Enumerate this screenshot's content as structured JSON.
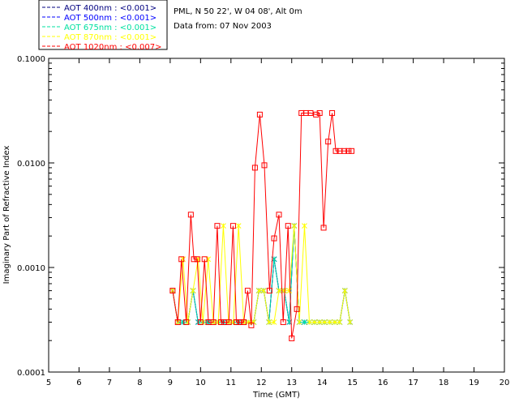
{
  "info": {
    "site": "PML, N 50 22', W 04 08', Alt 0m",
    "date": "Data from: 07 Nov 2003"
  },
  "chart_data": {
    "type": "line",
    "title": "",
    "xlabel": "Time (GMT)",
    "ylabel": "Imaginary Part of Refractive Index",
    "xlim": [
      5,
      20
    ],
    "ylim": [
      0.0001,
      0.1
    ],
    "yscale": "log",
    "x_ticks": [
      "5",
      "6",
      "7",
      "8",
      "9",
      "10",
      "11",
      "12",
      "13",
      "14",
      "15",
      "16",
      "17",
      "18",
      "19",
      "20"
    ],
    "y_ticks": [
      {
        "value": 0.0001,
        "label": "0.0001"
      },
      {
        "value": 0.001,
        "label": "0.0010"
      },
      {
        "value": 0.01,
        "label": "0.0100"
      },
      {
        "value": 0.1,
        "label": "0.1000"
      }
    ],
    "legend_position": "top-left (outside plot)",
    "series": [
      {
        "name": "AOT 400nm : <0.001>",
        "color": "#000080",
        "marker": "x",
        "x": [
          9.08,
          9.25,
          9.42,
          9.58,
          9.75,
          9.92,
          10.08,
          10.25,
          10.42,
          10.58,
          10.75,
          10.92,
          11.08,
          11.25,
          11.42,
          11.58,
          11.75,
          11.92,
          12.08,
          12.25,
          12.42,
          12.58,
          12.75,
          12.92,
          13.08,
          13.25,
          13.42,
          13.58,
          13.75,
          13.92,
          14.08,
          14.25,
          14.42,
          14.58,
          14.75,
          14.92
        ],
        "y": [
          0.0006,
          0.0003,
          0.0003,
          0.0003,
          0.0006,
          0.0003,
          0.0003,
          0.0003,
          0.0003,
          0.0003,
          0.0003,
          0.0003,
          0.0003,
          0.0003,
          0.0003,
          0.0003,
          0.0003,
          0.0006,
          0.0006,
          0.0003,
          0.0012,
          0.0006,
          0.0006,
          0.0003,
          0.0025,
          0.0003,
          0.0003,
          0.0003,
          0.0003,
          0.0003,
          0.0003,
          0.0003,
          0.0003,
          0.0003,
          0.0006,
          0.0003
        ]
      },
      {
        "name": "AOT 500nm : <0.001>",
        "color": "#0000ff",
        "marker": "x",
        "x": [
          9.08,
          9.25,
          9.42,
          9.58,
          9.75,
          9.92,
          10.08,
          10.25,
          10.42,
          10.58,
          10.75,
          10.92,
          11.08,
          11.25,
          11.42,
          11.58,
          11.75,
          11.92,
          12.08,
          12.25,
          12.42,
          12.58,
          12.75,
          12.92,
          13.08,
          13.25,
          13.42,
          13.58,
          13.75,
          13.92,
          14.08,
          14.25,
          14.42,
          14.58,
          14.75,
          14.92
        ],
        "y": [
          0.0006,
          0.0003,
          0.0003,
          0.0003,
          0.0006,
          0.0003,
          0.0003,
          0.0003,
          0.0003,
          0.0003,
          0.0003,
          0.0003,
          0.0003,
          0.0003,
          0.0003,
          0.0003,
          0.0003,
          0.0006,
          0.0006,
          0.0003,
          0.0012,
          0.0006,
          0.0006,
          0.0003,
          0.0025,
          0.0003,
          0.0003,
          0.0003,
          0.0003,
          0.0003,
          0.0003,
          0.0003,
          0.0003,
          0.0003,
          0.0006,
          0.0003
        ]
      },
      {
        "name": "AOT 675nm : <0.001>",
        "color": "#00e0a0",
        "marker": "x",
        "x": [
          9.08,
          9.25,
          9.42,
          9.58,
          9.75,
          9.92,
          10.08,
          10.25,
          10.42,
          10.58,
          10.75,
          10.92,
          11.08,
          11.25,
          11.42,
          11.58,
          11.75,
          11.92,
          12.08,
          12.25,
          12.42,
          12.58,
          12.75,
          12.92,
          13.08,
          13.25,
          13.42,
          13.58,
          13.75,
          13.92,
          14.08,
          14.25,
          14.42,
          14.58,
          14.75,
          14.92
        ],
        "y": [
          0.0006,
          0.0003,
          0.0003,
          0.0003,
          0.0006,
          0.0003,
          0.0003,
          0.0003,
          0.0003,
          0.0003,
          0.0003,
          0.0003,
          0.0003,
          0.0003,
          0.0003,
          0.0003,
          0.0003,
          0.0006,
          0.0006,
          0.0003,
          0.0012,
          0.0006,
          0.0006,
          0.0003,
          0.0025,
          0.0003,
          0.0003,
          0.0003,
          0.0003,
          0.0003,
          0.0003,
          0.0003,
          0.0003,
          0.0003,
          0.0006,
          0.0003
        ]
      },
      {
        "name": "AOT 870nm : <0.001>",
        "color": "#ffff00",
        "marker": "x",
        "x": [
          9.08,
          9.25,
          9.42,
          9.58,
          9.75,
          9.92,
          10.08,
          10.25,
          10.42,
          10.58,
          10.75,
          10.92,
          11.08,
          11.25,
          11.42,
          11.58,
          11.75,
          11.92,
          12.08,
          12.25,
          12.42,
          12.58,
          12.75,
          12.92,
          13.08,
          13.25,
          13.42,
          13.58,
          13.75,
          13.92,
          14.08,
          14.25,
          14.42,
          14.58,
          14.75,
          14.92
        ],
        "y": [
          0.0006,
          0.0003,
          0.0012,
          0.0003,
          0.0006,
          0.0012,
          0.0003,
          0.0012,
          0.0003,
          0.0003,
          0.0025,
          0.0003,
          0.0003,
          0.0025,
          0.0003,
          0.0003,
          0.0003,
          0.0006,
          0.0006,
          0.0003,
          0.0003,
          0.0006,
          0.0006,
          0.0006,
          0.0025,
          0.0003,
          0.0025,
          0.0003,
          0.0003,
          0.0003,
          0.0003,
          0.0003,
          0.0003,
          0.0003,
          0.0006,
          0.0003
        ]
      },
      {
        "name": "AOT 1020nm : <0.007>",
        "color": "#ff0000",
        "marker": "square",
        "x": [
          9.08,
          9.25,
          9.37,
          9.53,
          9.68,
          9.78,
          9.89,
          10.0,
          10.13,
          10.26,
          10.42,
          10.55,
          10.67,
          10.78,
          10.93,
          11.07,
          11.18,
          11.3,
          11.42,
          11.55,
          11.67,
          11.79,
          11.95,
          12.1,
          12.27,
          12.42,
          12.58,
          12.72,
          12.88,
          13.0,
          13.17,
          13.32,
          13.47,
          13.62,
          13.8,
          13.92,
          14.05,
          14.2,
          14.33,
          14.45,
          14.58,
          14.73,
          14.87,
          14.97
        ],
        "y": [
          0.0006,
          0.0003,
          0.0012,
          0.0003,
          0.0032,
          0.0012,
          0.0012,
          0.0003,
          0.0012,
          0.0003,
          0.0003,
          0.0025,
          0.0003,
          0.0003,
          0.0003,
          0.0025,
          0.0003,
          0.0003,
          0.0003,
          0.0006,
          0.00028,
          0.009,
          0.029,
          0.0095,
          0.0006,
          0.0019,
          0.0032,
          0.0003,
          0.0025,
          0.00021,
          0.0004,
          0.03,
          0.03,
          0.03,
          0.029,
          0.03,
          0.0024,
          0.016,
          0.03,
          0.013,
          0.013,
          0.013,
          0.013,
          0.013
        ]
      }
    ]
  }
}
